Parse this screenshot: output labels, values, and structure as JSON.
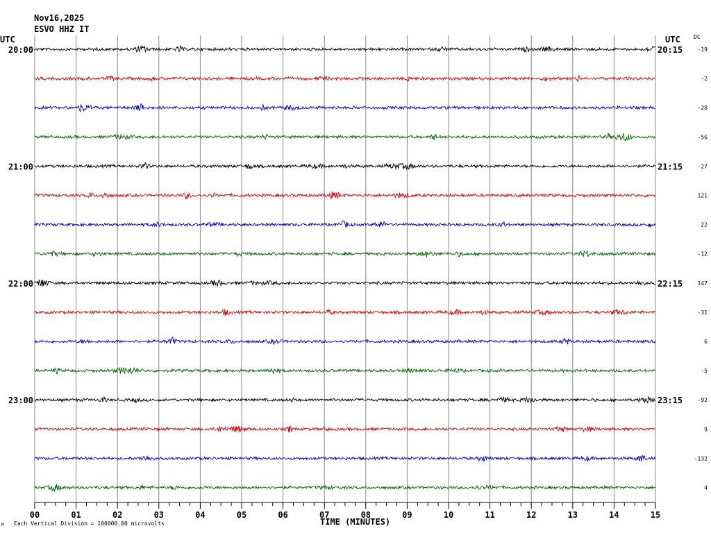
{
  "header": {
    "date": "Nov16,2025",
    "station": "ESVO HHZ IT",
    "utc_left": "UTC",
    "utc_right": "UTC",
    "dc_label": "DC"
  },
  "footer": {
    "xlabel": "TIME (MINUTES)",
    "scale_note": "Each Vertical Division = 100000.00 microvolts"
  },
  "chart_data": {
    "type": "line",
    "title": "",
    "xlabel": "TIME (MINUTES)",
    "ylabel": "",
    "xlim": [
      0,
      15
    ],
    "x_ticks": [
      "00",
      "01",
      "02",
      "03",
      "04",
      "05",
      "06",
      "07",
      "08",
      "09",
      "10",
      "11",
      "12",
      "13",
      "14",
      "15"
    ],
    "row_count": 16,
    "grid": "vertical",
    "colors": [
      "#000000",
      "#e00000",
      "#0000d0",
      "#006400"
    ],
    "left_hour_labels": [
      {
        "row": 0,
        "label": "20:00"
      },
      {
        "row": 4,
        "label": "21:00"
      },
      {
        "row": 8,
        "label": "22:00"
      },
      {
        "row": 12,
        "label": "23:00"
      }
    ],
    "right_hour_labels": [
      {
        "row": 0,
        "label": "20:15"
      },
      {
        "row": 4,
        "label": "21:15"
      },
      {
        "row": 8,
        "label": "22:15"
      },
      {
        "row": 12,
        "label": "23:15"
      }
    ],
    "dc_offsets": [
      "-19",
      "-2",
      "-28",
      "-56",
      "-27",
      "121",
      "22",
      "-12",
      "147",
      "-31",
      "6",
      "-5",
      "-92",
      "9",
      "-132",
      "4"
    ]
  }
}
